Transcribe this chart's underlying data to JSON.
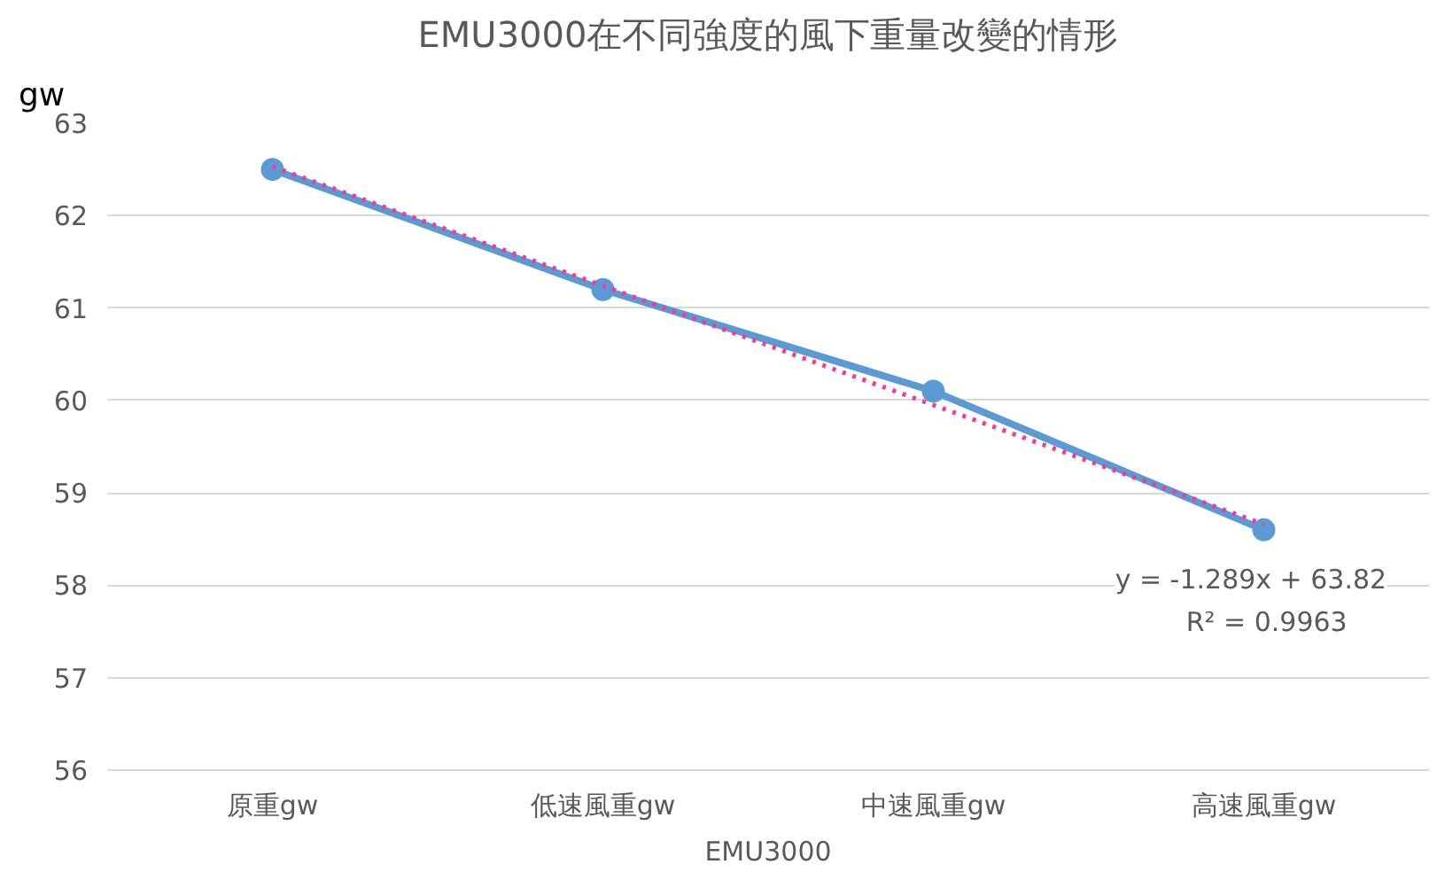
{
  "chart_data": {
    "type": "line",
    "title": "EMU3000在不同強度的風下重量改變的情形",
    "ylabel": "gw",
    "xlabel": "EMU3000",
    "categories": [
      "原重gw",
      "低速風重gw",
      "中速風重gw",
      "高速風重gw"
    ],
    "series": [
      {
        "color": "#5b9bd5",
        "values": [
          62.5,
          61.2,
          60.1,
          58.6
        ],
        "marker": "circle",
        "line_style": "solid"
      },
      {
        "type": "line",
        "color": "#ff3399",
        "values": [
          62.53,
          61.24,
          59.95,
          58.66
        ],
        "marker": "none",
        "line_style": "dotted"
      }
    ],
    "ylim": [
      56,
      63
    ],
    "yticks": [
      56,
      57,
      58,
      59,
      60,
      61,
      62,
      63
    ],
    "grid": "y",
    "annotations": [
      "y = -1.289x + 63.82\nR² = 0.9963"
    ]
  }
}
